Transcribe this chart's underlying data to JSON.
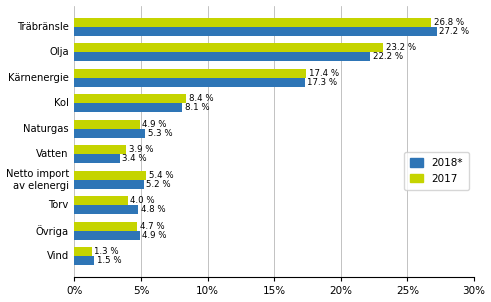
{
  "categories": [
    "Träbränsle",
    "Olja",
    "Kärnenergie",
    "Kol",
    "Naturgas",
    "Vatten",
    "Netto import\nav elenergi",
    "Torv",
    "Övriga",
    "Vind"
  ],
  "values_2018": [
    27.2,
    22.2,
    17.3,
    8.1,
    5.3,
    3.4,
    5.2,
    4.8,
    4.9,
    1.5
  ],
  "values_2017": [
    26.8,
    23.2,
    17.4,
    8.4,
    4.9,
    3.9,
    5.4,
    4.0,
    4.7,
    1.3
  ],
  "color_2018": "#2E75B6",
  "color_2017": "#C5D400",
  "xlim": [
    0,
    30
  ],
  "xticks": [
    0,
    5,
    10,
    15,
    20,
    25,
    30
  ],
  "legend_2018": "2018*",
  "legend_2017": "2017",
  "bar_height": 0.35
}
